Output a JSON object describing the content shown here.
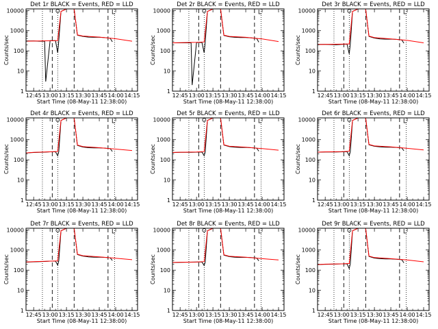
{
  "chart_data": {
    "type": "line",
    "x_tick_labels": [
      "12:45",
      "13:00",
      "13:15",
      "13:30",
      "13:45",
      "14:00",
      "14:15"
    ],
    "xlabel": "Start Time (08-May-11 12:38:00)",
    "ylabel": "Counts/sec",
    "y_tick_labels": [
      "1",
      "10",
      "100",
      "1000",
      "10000"
    ],
    "ylim": [
      1,
      12000
    ],
    "y_scale": "log",
    "colors": {
      "events": "#000000",
      "lld": "#ff0000"
    },
    "panels": [
      {
        "title": "Det 1r BLACK = Events, RED = LLD",
        "series": [
          {
            "color": "#000000",
            "x": [
              "12:38",
              "12:45",
              "12:50",
              "12:55",
              "12:56",
              "13:00",
              "13:05",
              "13:07",
              "13:08",
              "13:10",
              "13:15",
              "13:22",
              "13:25",
              "13:30",
              "13:35",
              "13:40",
              "13:45",
              "13:50",
              "13:55",
              "13:57"
            ],
            "y": [
              310,
              310,
              300,
              300,
              3,
              320,
              320,
              80,
              320,
              9000,
              12000,
              12000,
              600,
              520,
              480,
              470,
              470,
              450,
              420,
              280
            ]
          },
          {
            "color": "#ff0000",
            "x": [
              "12:38",
              "12:45",
              "13:00",
              "13:07",
              "13:10",
              "13:15",
              "13:22",
              "13:25",
              "13:30",
              "13:45",
              "14:00",
              "14:15"
            ],
            "y": [
              300,
              305,
              315,
              320,
              9000,
              12000,
              12000,
              620,
              540,
              480,
              400,
              300
            ]
          }
        ]
      },
      {
        "title": "Det 2r BLACK = Events, RED = LLD",
        "series": [
          {
            "color": "#000000",
            "x": [
              "12:38",
              "12:45",
              "12:50",
              "12:55",
              "12:56",
              "13:00",
              "13:05",
              "13:07",
              "13:08",
              "13:10",
              "13:15",
              "13:22",
              "13:25",
              "13:30",
              "13:35",
              "13:40",
              "13:45",
              "13:50",
              "13:55",
              "13:57"
            ],
            "y": [
              250,
              250,
              250,
              250,
              2,
              260,
              260,
              80,
              270,
              9000,
              12000,
              12000,
              580,
              500,
              470,
              460,
              460,
              440,
              410,
              270
            ]
          },
          {
            "color": "#ff0000",
            "x": [
              "12:38",
              "12:45",
              "13:00",
              "13:07",
              "13:10",
              "13:15",
              "13:22",
              "13:25",
              "13:30",
              "13:45",
              "14:00",
              "14:15"
            ],
            "y": [
              250,
              255,
              265,
              275,
              9000,
              12000,
              12000,
              600,
              520,
              470,
              390,
              290
            ]
          }
        ]
      },
      {
        "title": "Det 3r BLACK = Events, RED = LLD",
        "series": [
          {
            "color": "#000000",
            "x": [
              "12:38",
              "12:45",
              "12:55",
              "13:00",
              "13:05",
              "13:07",
              "13:08",
              "13:10",
              "13:15",
              "13:22",
              "13:25",
              "13:30",
              "13:35",
              "13:40",
              "13:45",
              "13:50",
              "13:55",
              "13:57"
            ],
            "y": [
              210,
              210,
              200,
              210,
              215,
              70,
              220,
              9000,
              12000,
              12000,
              520,
              430,
              390,
              380,
              380,
              370,
              350,
              240
            ]
          },
          {
            "color": "#ff0000",
            "x": [
              "12:38",
              "12:45",
              "13:00",
              "13:07",
              "13:10",
              "13:15",
              "13:22",
              "13:25",
              "13:30",
              "13:45",
              "14:00",
              "14:15"
            ],
            "y": [
              205,
              210,
              215,
              220,
              9000,
              12000,
              12000,
              540,
              450,
              390,
              330,
              250
            ]
          }
        ]
      },
      {
        "title": "Det 4r BLACK = Events, RED = LLD",
        "series": [
          {
            "color": "#000000",
            "x": [
              "12:38",
              "12:45",
              "12:55",
              "13:00",
              "13:05",
              "13:07",
              "13:08",
              "13:10",
              "13:15",
              "13:22",
              "13:25",
              "13:30",
              "13:35",
              "13:40",
              "13:45",
              "13:50",
              "13:55",
              "13:57"
            ],
            "y": [
              220,
              230,
              240,
              250,
              250,
              160,
              255,
              9000,
              12000,
              12000,
              520,
              430,
              400,
              390,
              390,
              380,
              360,
              260
            ]
          },
          {
            "color": "#ff0000",
            "x": [
              "12:38",
              "12:45",
              "13:00",
              "13:07",
              "13:10",
              "13:15",
              "13:22",
              "13:25",
              "13:30",
              "13:45",
              "14:00",
              "14:15"
            ],
            "y": [
              220,
              235,
              250,
              260,
              9000,
              12000,
              12000,
              540,
              450,
              400,
              340,
              290
            ]
          }
        ]
      },
      {
        "title": "Det 5r BLACK = Events, RED = LLD",
        "series": [
          {
            "color": "#000000",
            "x": [
              "12:38",
              "12:45",
              "12:55",
              "13:00",
              "13:05",
              "13:07",
              "13:08",
              "13:10",
              "13:15",
              "13:22",
              "13:25",
              "13:30",
              "13:35",
              "13:40",
              "13:45",
              "13:50",
              "13:55",
              "13:57"
            ],
            "y": [
              230,
              235,
              235,
              240,
              245,
              160,
              250,
              9000,
              12000,
              12000,
              540,
              450,
              420,
              410,
              410,
              400,
              380,
              270
            ]
          },
          {
            "color": "#ff0000",
            "x": [
              "12:38",
              "12:45",
              "13:00",
              "13:07",
              "13:10",
              "13:15",
              "13:22",
              "13:25",
              "13:30",
              "13:45",
              "14:00",
              "14:15"
            ],
            "y": [
              230,
              238,
              245,
              255,
              9000,
              12000,
              12000,
              560,
              470,
              420,
              360,
              300
            ]
          }
        ]
      },
      {
        "title": "Det 6r BLACK = Events, RED = LLD",
        "series": [
          {
            "color": "#000000",
            "x": [
              "12:38",
              "12:45",
              "12:55",
              "13:00",
              "13:05",
              "13:07",
              "13:08",
              "13:10",
              "13:15",
              "13:22",
              "13:25",
              "13:30",
              "13:35",
              "13:40",
              "13:45",
              "13:50",
              "13:55",
              "13:57"
            ],
            "y": [
              240,
              245,
              245,
              250,
              255,
              160,
              260,
              9000,
              12000,
              12000,
              560,
              470,
              440,
              420,
              420,
              410,
              390,
              280
            ]
          },
          {
            "color": "#ff0000",
            "x": [
              "12:38",
              "12:45",
              "13:00",
              "13:07",
              "13:10",
              "13:15",
              "13:22",
              "13:25",
              "13:30",
              "13:45",
              "14:00",
              "14:15"
            ],
            "y": [
              240,
              248,
              255,
              265,
              9000,
              12000,
              12000,
              580,
              490,
              440,
              370,
              310
            ]
          }
        ]
      },
      {
        "title": "Det 7r BLACK = Events, RED = LLD",
        "series": [
          {
            "color": "#000000",
            "x": [
              "12:38",
              "12:45",
              "12:55",
              "13:00",
              "13:05",
              "13:07",
              "13:08",
              "13:10",
              "13:15",
              "13:22",
              "13:25",
              "13:30",
              "13:35",
              "13:40",
              "13:45",
              "13:50",
              "13:55",
              "13:57"
            ],
            "y": [
              250,
              260,
              270,
              280,
              280,
              180,
              290,
              9000,
              12000,
              12000,
              600,
              500,
              460,
              440,
              440,
              430,
              410,
              300
            ]
          },
          {
            "color": "#ff0000",
            "x": [
              "12:38",
              "12:45",
              "13:00",
              "13:07",
              "13:10",
              "13:15",
              "13:22",
              "13:25",
              "13:30",
              "13:45",
              "14:00",
              "14:15"
            ],
            "y": [
              255,
              265,
              280,
              290,
              9000,
              12000,
              12000,
              620,
              520,
              460,
              390,
              330
            ]
          }
        ]
      },
      {
        "title": "Det 8r BLACK = Events, RED = LLD",
        "series": [
          {
            "color": "#000000",
            "x": [
              "12:38",
              "12:45",
              "12:55",
              "13:00",
              "13:05",
              "13:07",
              "13:08",
              "13:10",
              "13:15",
              "13:22",
              "13:25",
              "13:30",
              "13:35",
              "13:40",
              "13:45",
              "13:50",
              "13:55",
              "13:57"
            ],
            "y": [
              240,
              245,
              250,
              255,
              255,
              170,
              260,
              9000,
              12000,
              12000,
              560,
              470,
              440,
              430,
              430,
              420,
              400,
              290
            ]
          },
          {
            "color": "#ff0000",
            "x": [
              "12:38",
              "12:45",
              "13:00",
              "13:07",
              "13:10",
              "13:15",
              "13:22",
              "13:25",
              "13:30",
              "13:45",
              "14:00",
              "14:15"
            ],
            "y": [
              240,
              248,
              255,
              265,
              9000,
              12000,
              12000,
              580,
              490,
              440,
              370,
              320
            ]
          }
        ]
      },
      {
        "title": "Det 9r BLACK = Events, RED = LLD",
        "series": [
          {
            "color": "#000000",
            "x": [
              "12:38",
              "12:45",
              "12:55",
              "13:00",
              "13:05",
              "13:07",
              "13:08",
              "13:10",
              "13:15",
              "13:22",
              "13:25",
              "13:30",
              "13:35",
              "13:40",
              "13:45",
              "13:50",
              "13:55",
              "13:57"
            ],
            "y": [
              190,
              195,
              200,
              205,
              205,
              120,
              210,
              9000,
              12000,
              12000,
              480,
              400,
              370,
              360,
              360,
              350,
              330,
              230
            ]
          },
          {
            "color": "#ff0000",
            "x": [
              "12:38",
              "12:45",
              "13:00",
              "13:07",
              "13:10",
              "13:15",
              "13:22",
              "13:25",
              "13:30",
              "13:45",
              "14:00",
              "14:15"
            ],
            "y": [
              190,
              198,
              205,
              215,
              9000,
              12000,
              12000,
              500,
              420,
              370,
              320,
              260
            ]
          }
        ]
      }
    ]
  }
}
